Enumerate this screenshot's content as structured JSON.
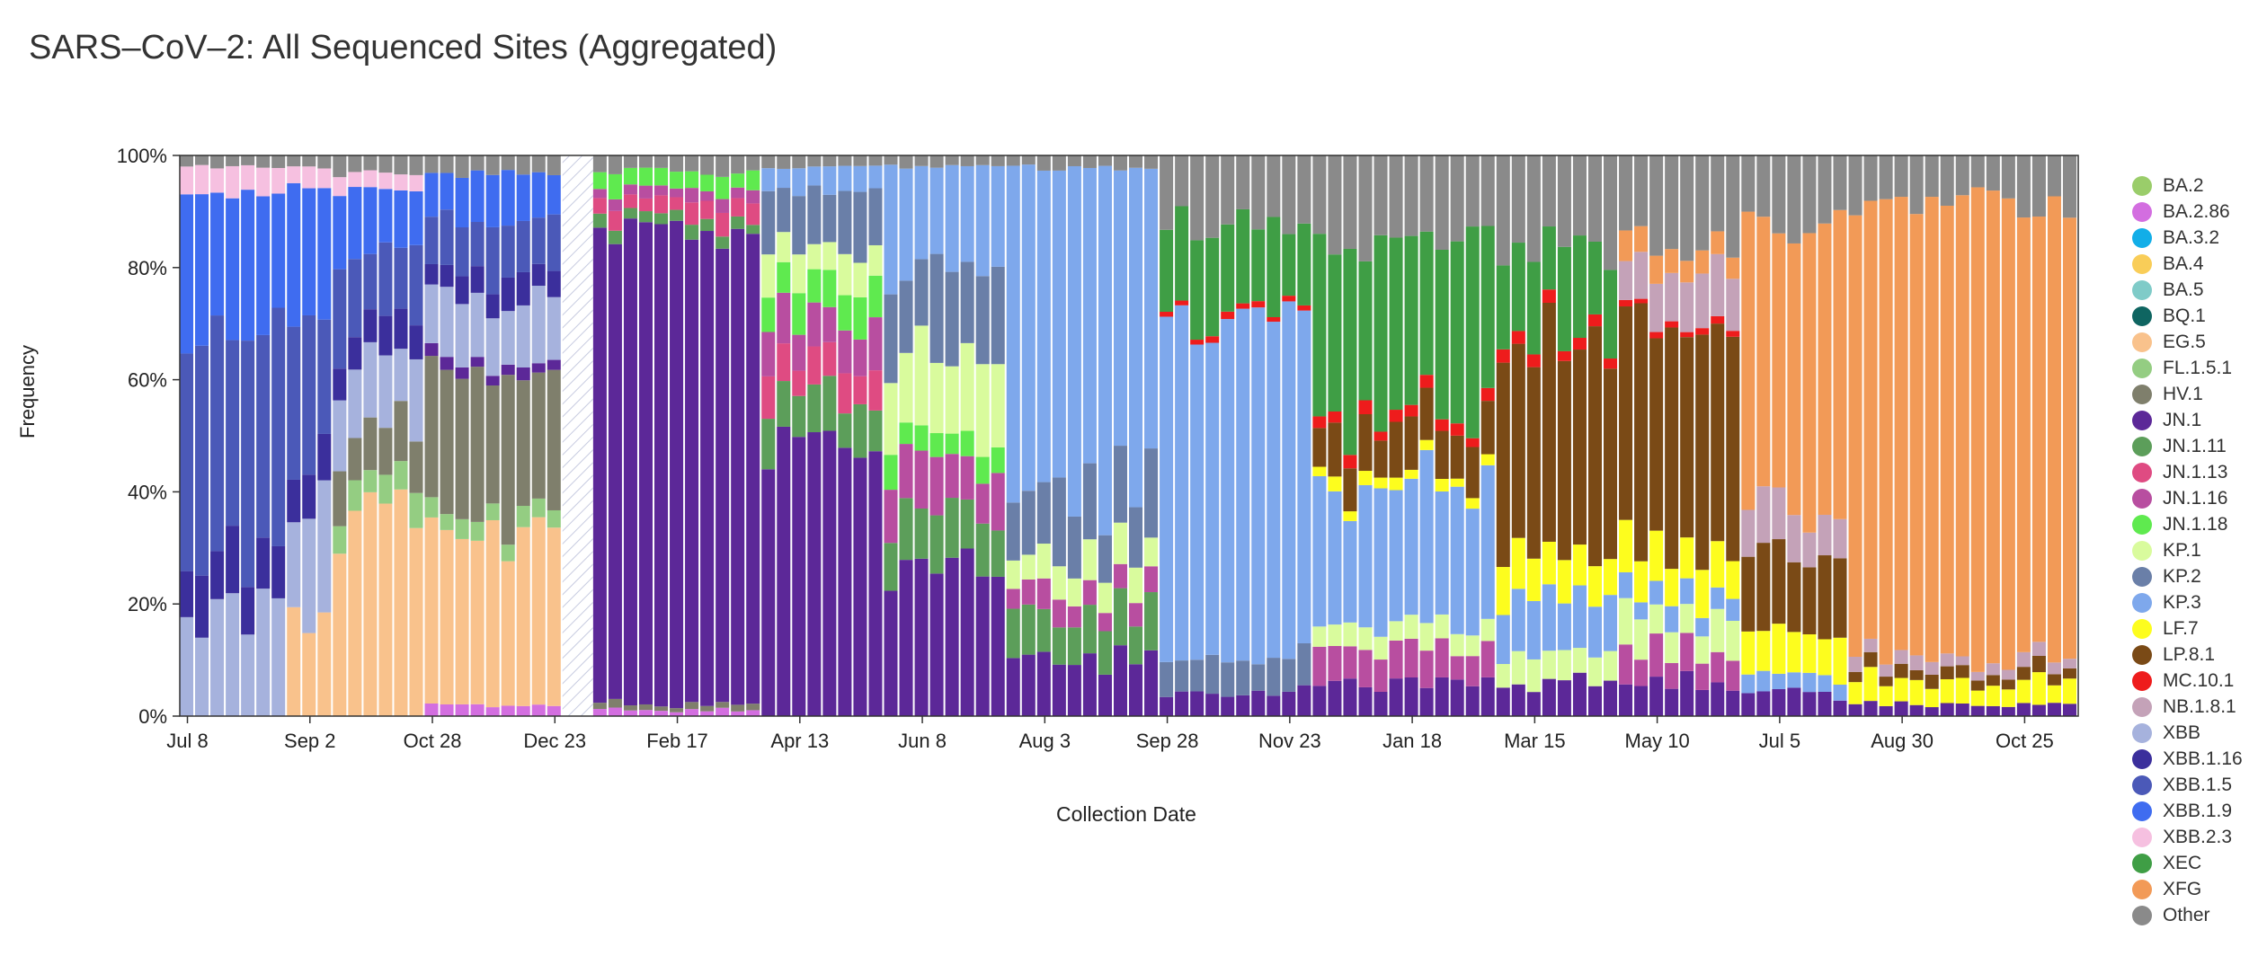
{
  "chart_data": {
    "type": "bar",
    "stacked": true,
    "title": "SARS–CoV–2: All Sequenced Sites (Aggregated)",
    "xlabel": "Collection Date",
    "ylabel": "Frequency",
    "ylim": [
      0,
      100
    ],
    "yticks": [
      "0%",
      "20%",
      "40%",
      "60%",
      "80%",
      "100%"
    ],
    "x_start": "2023-07-08",
    "x_end": "2025-11-15",
    "x_step_days": 7,
    "xticks": [
      "Jul 8",
      "Sep 2",
      "Oct 28",
      "Dec 23",
      "Feb 17",
      "Apr 13",
      "Jun 8",
      "Aug 3",
      "Sep 28",
      "Nov 23",
      "Jan 18",
      "Mar 15",
      "May 10",
      "Jul 5",
      "Aug 30",
      "Oct 25"
    ],
    "gap": {
      "from": "2023-12-30",
      "to": "2024-01-06",
      "note": "no data (hatched)"
    },
    "grid": false,
    "legend_position": "right",
    "lineages": [
      {
        "name": "BA.2",
        "color": "#9acd6a"
      },
      {
        "name": "BA.2.86",
        "color": "#d36ee0"
      },
      {
        "name": "BA.3.2",
        "color": "#12aee8"
      },
      {
        "name": "BA.4",
        "color": "#f9cd58"
      },
      {
        "name": "BA.5",
        "color": "#7fcbc8"
      },
      {
        "name": "BQ.1",
        "color": "#0f6561"
      },
      {
        "name": "EG.5",
        "color": "#f9c28c"
      },
      {
        "name": "FL.1.5.1",
        "color": "#94cd82"
      },
      {
        "name": "HV.1",
        "color": "#7f7f6c"
      },
      {
        "name": "JN.1",
        "color": "#5c2898"
      },
      {
        "name": "JN.1.11",
        "color": "#5c9e5a"
      },
      {
        "name": "JN.1.13",
        "color": "#df4b82"
      },
      {
        "name": "JN.1.16",
        "color": "#b84ea0"
      },
      {
        "name": "JN.1.18",
        "color": "#5fea4f"
      },
      {
        "name": "KP.1",
        "color": "#d9fb9d"
      },
      {
        "name": "KP.2",
        "color": "#6a7fa8"
      },
      {
        "name": "KP.3",
        "color": "#7ea8ec"
      },
      {
        "name": "LF.7",
        "color": "#fdfd1e"
      },
      {
        "name": "LP.8.1",
        "color": "#7a4a16"
      },
      {
        "name": "MC.10.1",
        "color": "#ee1c1c"
      },
      {
        "name": "NB.1.8.1",
        "color": "#c4a2b8"
      },
      {
        "name": "XBB",
        "color": "#a6b2dd"
      },
      {
        "name": "XBB.1.16",
        "color": "#3b2f9c"
      },
      {
        "name": "XBB.1.5",
        "color": "#4b59b8"
      },
      {
        "name": "XBB.1.9",
        "color": "#3f6cf0"
      },
      {
        "name": "XBB.2.3",
        "color": "#f6c0e0"
      },
      {
        "name": "XEC",
        "color": "#3f9e45"
      },
      {
        "name": "XFG",
        "color": "#f29a57"
      },
      {
        "name": "Other",
        "color": "#8a8a8a"
      }
    ],
    "eras": [
      {
        "from": "2023-07-08",
        "to": "2023-08-19",
        "shares": {
          "XBB": 18,
          "XBB.1.5": 40,
          "XBB.1.16": 10,
          "XBB.1.9": 25,
          "XBB.2.3": 5,
          "Other": 2
        }
      },
      {
        "from": "2023-08-26",
        "to": "2023-09-09",
        "shares": {
          "EG.5": 18,
          "XBB": 18,
          "XBB.1.5": 25,
          "XBB.1.16": 8,
          "XBB.1.9": 25,
          "XBB.2.3": 4,
          "Other": 2
        }
      },
      {
        "from": "2023-09-16",
        "to": "2023-10-21",
        "shares": {
          "EG.5": 35,
          "FL.1.5.1": 5,
          "HV.1": 10,
          "XBB": 12,
          "XBB.1.5": 14,
          "XBB.1.16": 6,
          "XBB.1.9": 12,
          "XBB.2.3": 3,
          "Other": 3
        }
      },
      {
        "from": "2023-10-28",
        "to": "2023-12-23",
        "shares": {
          "BA.2.86": 2,
          "EG.5": 30,
          "FL.1.5.1": 3,
          "HV.1": 25,
          "JN.1": 2,
          "XBB": 12,
          "XBB.1.5": 10,
          "XBB.1.16": 5,
          "XBB.1.9": 8,
          "Other": 3
        }
      },
      {
        "from": "2024-01-13",
        "to": "2024-03-23",
        "shares": {
          "BA.2.86": 1,
          "JN.1": 85,
          "JN.1.11": 2,
          "JN.1.13": 3,
          "JN.1.16": 2,
          "JN.1.18": 3,
          "HV.1": 1,
          "Other": 3
        }
      },
      {
        "from": "2024-03-30",
        "to": "2024-05-18",
        "shares": {
          "JN.1": 50,
          "JN.1.11": 8,
          "JN.1.13": 6,
          "JN.1.16": 8,
          "JN.1.18": 6,
          "KP.1": 6,
          "KP.2": 10,
          "KP.3": 4,
          "Other": 2
        }
      },
      {
        "from": "2024-05-25",
        "to": "2024-07-13",
        "shares": {
          "JN.1": 25,
          "JN.1.11": 10,
          "JN.1.16": 10,
          "JN.1.18": 5,
          "KP.1": 15,
          "KP.2": 15,
          "KP.3": 18,
          "Other": 2
        }
      },
      {
        "from": "2024-07-20",
        "to": "2024-09-21",
        "shares": {
          "JN.1": 10,
          "JN.1.11": 8,
          "JN.1.16": 4,
          "KP.1": 6,
          "KP.2": 12,
          "KP.3": 58,
          "Other": 2
        }
      },
      {
        "from": "2024-09-28",
        "to": "2024-11-30",
        "shares": {
          "JN.1": 4,
          "KP.2": 6,
          "KP.3": 60,
          "XEC": 16,
          "MC.10.1": 1,
          "Other": 13
        }
      },
      {
        "from": "2024-12-07",
        "to": "2025-02-22",
        "shares": {
          "JN.1": 6,
          "JN.1.16": 6,
          "KP.1": 4,
          "KP.3": 25,
          "LF.7": 2,
          "LP.8.1": 8,
          "MC.10.1": 2,
          "XEC": 32,
          "Other": 15
        }
      },
      {
        "from": "2025-03-01",
        "to": "2025-04-19",
        "shares": {
          "JN.1": 6,
          "KP.1": 5,
          "KP.3": 10,
          "LF.7": 7,
          "LP.8.1": 38,
          "MC.10.1": 2,
          "XEC": 15,
          "Other": 17
        }
      },
      {
        "from": "2025-04-26",
        "to": "2025-06-14",
        "shares": {
          "JN.1": 6,
          "JN.1.16": 6,
          "KP.1": 6,
          "KP.3": 4,
          "LF.7": 8,
          "LP.8.1": 42,
          "NB.1.8.1": 8,
          "MC.10.1": 1,
          "XFG": 4,
          "Other": 15
        }
      },
      {
        "from": "2025-06-21",
        "to": "2025-08-02",
        "shares": {
          "JN.1": 4,
          "KP.3": 3,
          "LF.7": 8,
          "LP.8.1": 15,
          "NB.1.8.1": 8,
          "XFG": 50,
          "Other": 12
        }
      },
      {
        "from": "2025-08-09",
        "to": "2025-11-15",
        "shares": {
          "JN.1": 2,
          "LF.7": 4,
          "LP.8.1": 2,
          "NB.1.8.1": 2,
          "XFG": 82,
          "Other": 8
        }
      }
    ]
  }
}
